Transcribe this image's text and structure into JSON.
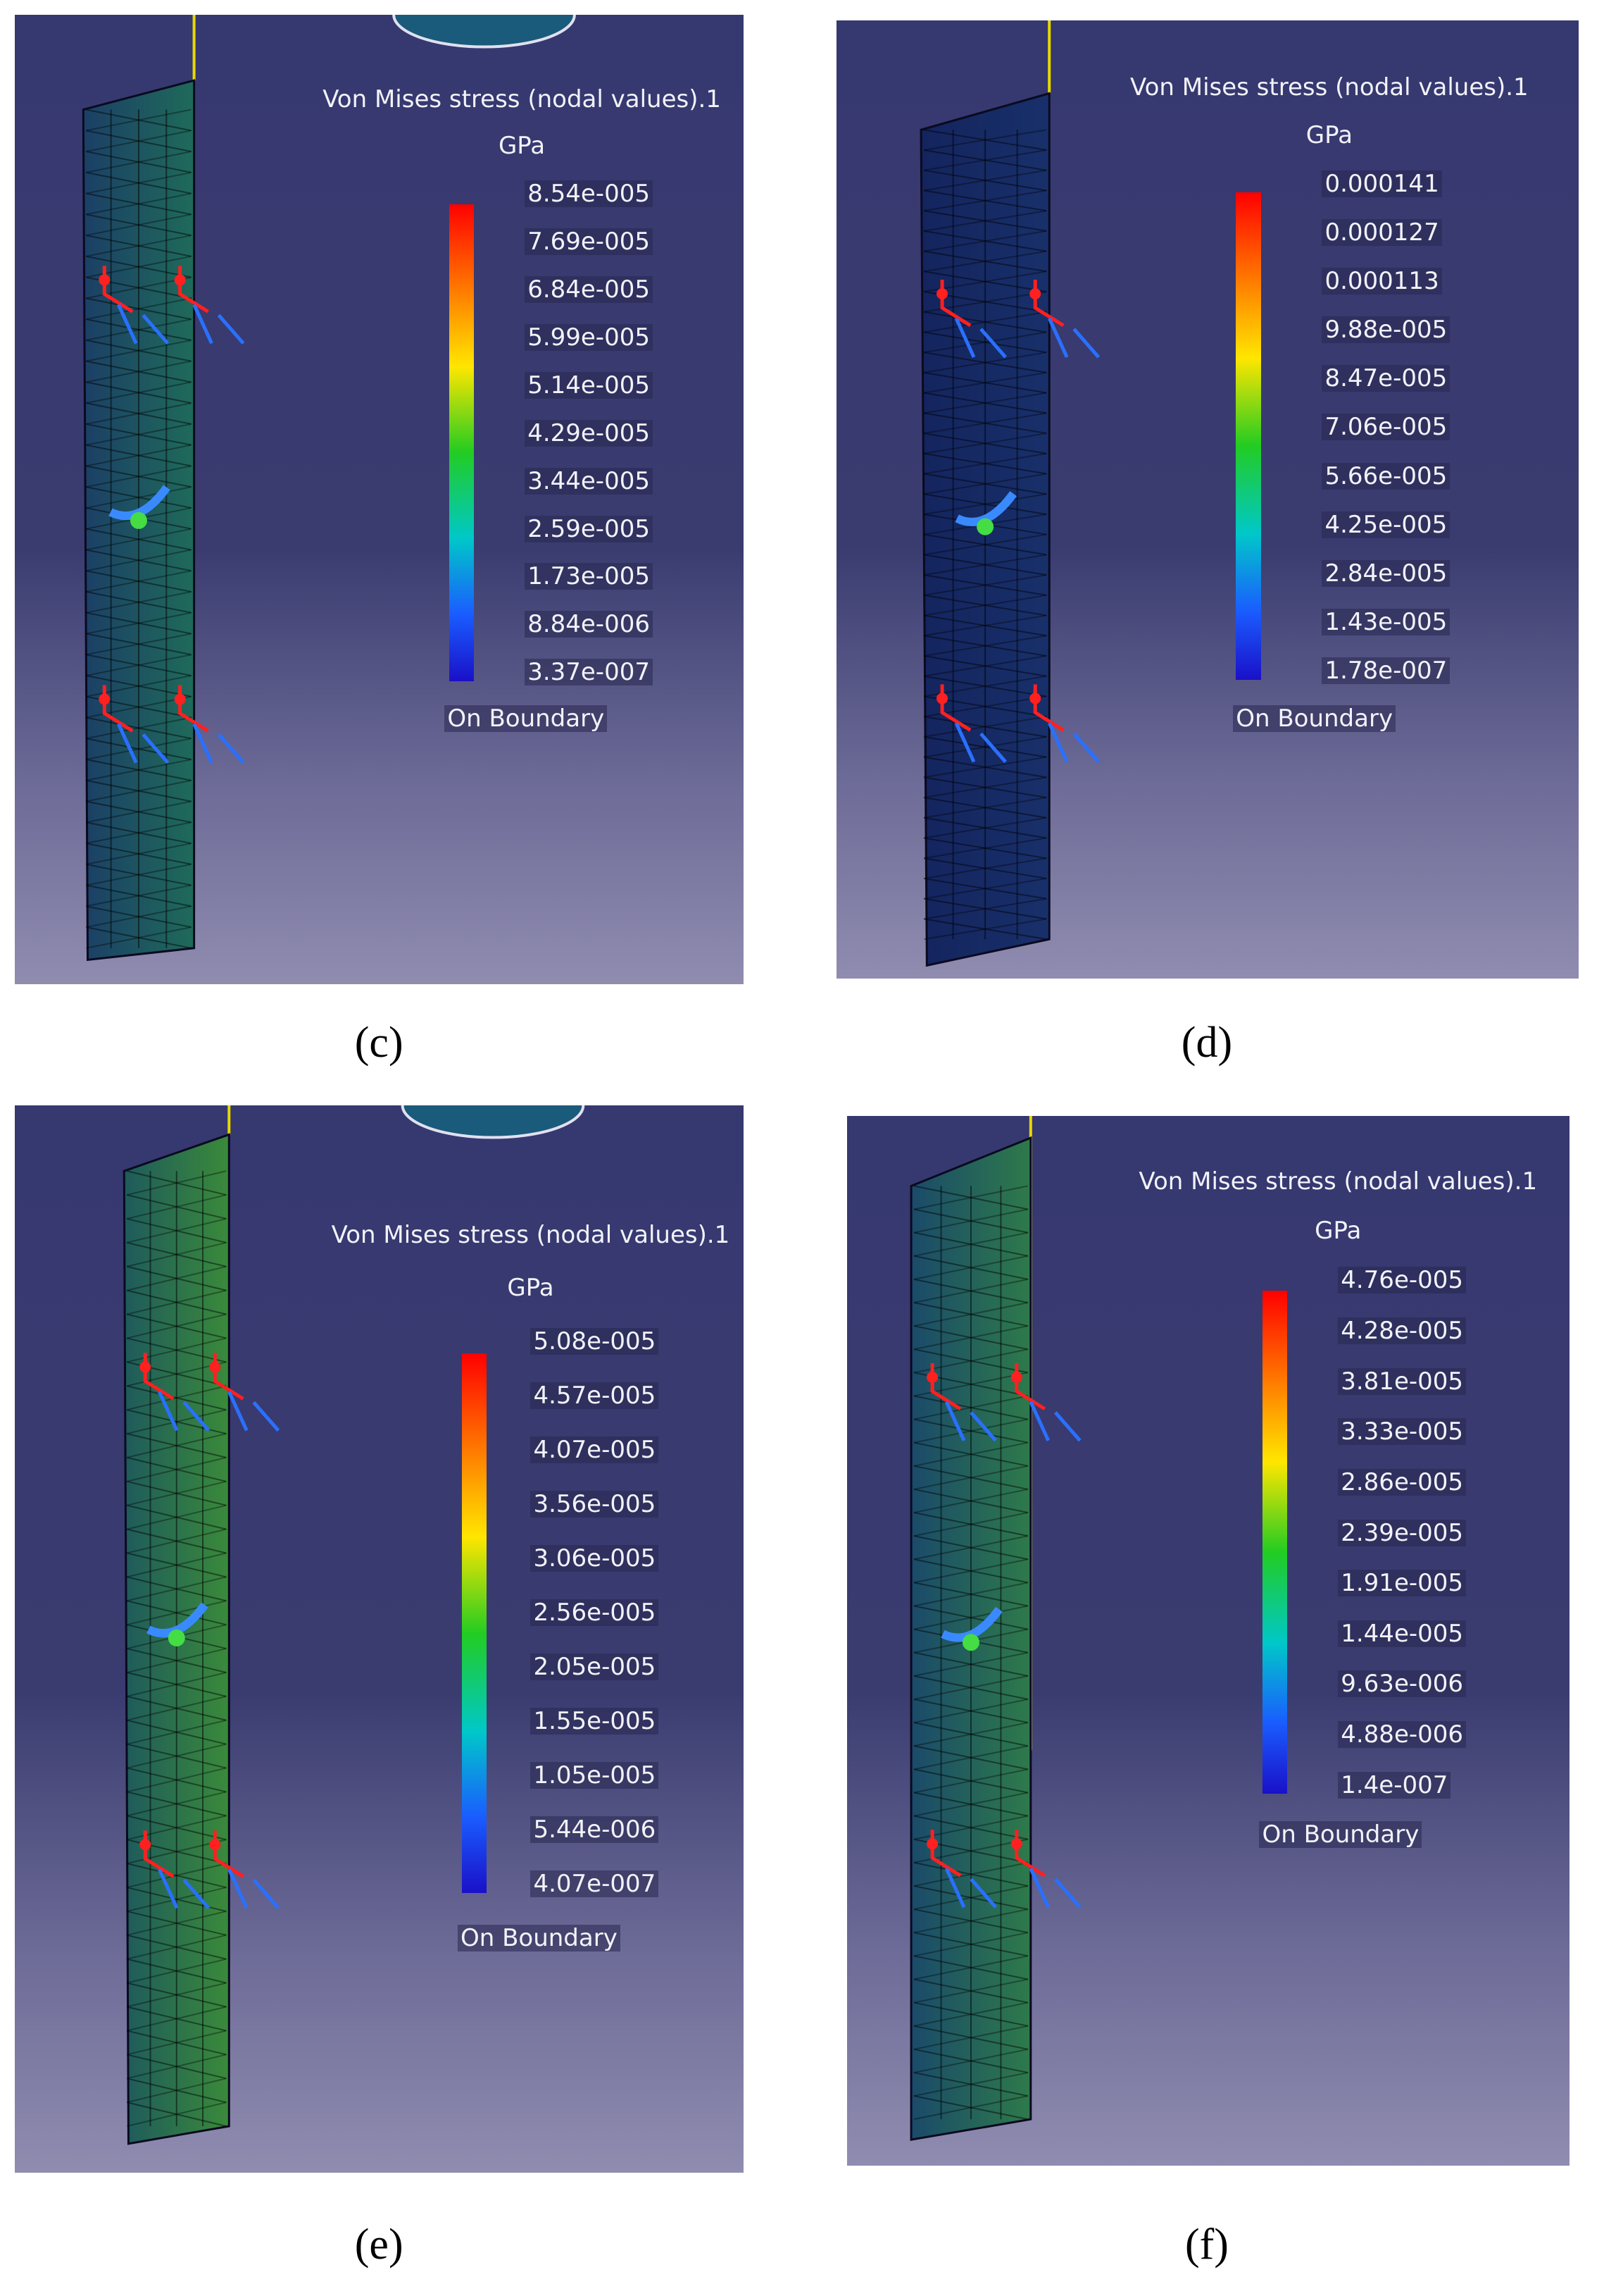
{
  "panels": [
    {
      "caption": "(c)",
      "legend": {
        "title": "Von Mises stress (nodal values).1",
        "unit": "GPa",
        "labels": [
          "8.54e-005",
          "7.69e-005",
          "6.84e-005",
          "5.99e-005",
          "5.14e-005",
          "4.29e-005",
          "3.44e-005",
          "2.59e-005",
          "1.73e-005",
          "8.84e-006",
          "3.37e-007"
        ],
        "footer": "On Boundary"
      }
    },
    {
      "caption": "(d)",
      "legend": {
        "title": "Von Mises stress (nodal values).1",
        "unit": "GPa",
        "labels": [
          "0.000141",
          "0.000127",
          "0.000113",
          "9.88e-005",
          "8.47e-005",
          "7.06e-005",
          "5.66e-005",
          "4.25e-005",
          "2.84e-005",
          "1.43e-005",
          "1.78e-007"
        ],
        "footer": "On Boundary"
      }
    },
    {
      "caption": "(e)",
      "legend": {
        "title": "Von Mises stress (nodal values).1",
        "unit": "GPa",
        "labels": [
          "5.08e-005",
          "4.57e-005",
          "4.07e-005",
          "3.56e-005",
          "3.06e-005",
          "2.56e-005",
          "2.05e-005",
          "1.55e-005",
          "1.05e-005",
          "5.44e-006",
          "4.07e-007"
        ],
        "footer": "On Boundary"
      }
    },
    {
      "caption": "(f)",
      "legend": {
        "title": "Von Mises stress (nodal values).1",
        "unit": "GPa",
        "labels": [
          "4.76e-005",
          "4.28e-005",
          "3.81e-005",
          "3.33e-005",
          "2.86e-005",
          "2.39e-005",
          "1.91e-005",
          "1.44e-005",
          "9.63e-006",
          "4.88e-006",
          "1.4e-007"
        ],
        "footer": "On Boundary"
      }
    }
  ]
}
